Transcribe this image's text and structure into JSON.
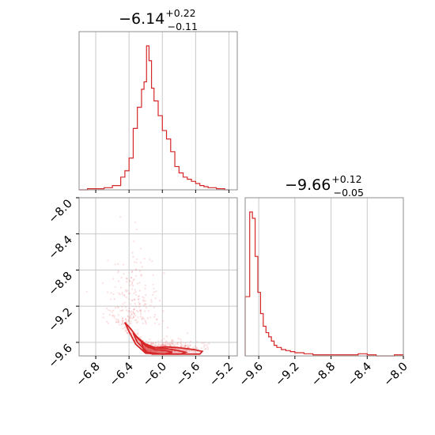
{
  "chart_data": [
    {
      "type": "histogram",
      "panel": "top-left",
      "title": {
        "value": "−6.14",
        "upper": "+0.22",
        "lower": "−0.11"
      },
      "xlim": [
        -7.0,
        -5.1
      ],
      "grid": true,
      "bin_edges": [
        -7.0,
        -6.9,
        -6.8,
        -6.7,
        -6.6,
        -6.5,
        -6.45,
        -6.4,
        -6.35,
        -6.3,
        -6.25,
        -6.22,
        -6.19,
        -6.16,
        -6.13,
        -6.1,
        -6.05,
        -6.0,
        -5.95,
        -5.9,
        -5.85,
        -5.8,
        -5.75,
        -5.7,
        -5.65,
        -5.6,
        -5.55,
        -5.5,
        -5.45,
        -5.4,
        -5.35,
        -5.3,
        -5.25,
        -5.2
      ],
      "counts": [
        0,
        1,
        1,
        2,
        4,
        12,
        18,
        30,
        58,
        78,
        95,
        102,
        136,
        122,
        96,
        84,
        70,
        56,
        48,
        36,
        22,
        16,
        12,
        10,
        8,
        6,
        4,
        3,
        2,
        2,
        1,
        1,
        0
      ]
    },
    {
      "type": "scatter",
      "panel": "bottom-left",
      "xlim": [
        -7.0,
        -5.1
      ],
      "ylim": [
        -9.75,
        -8.0
      ],
      "grid": true,
      "xticks": [
        "−6.8",
        "−6.4",
        "−6.0",
        "−5.6",
        "−5.2"
      ],
      "yticks": [
        "−8.0",
        "−8.4",
        "−8.8",
        "−9.2",
        "−9.6"
      ],
      "contours": [
        {
          "level": "outer",
          "x": [
            -6.45,
            -6.38,
            -6.3,
            -6.22,
            -6.1,
            -5.95,
            -5.8,
            -5.62,
            -5.52,
            -5.55,
            -5.75,
            -6.0,
            -6.2,
            -6.32,
            -6.4,
            -6.45
          ],
          "y": [
            -9.38,
            -9.45,
            -9.55,
            -9.62,
            -9.66,
            -9.65,
            -9.66,
            -9.68,
            -9.7,
            -9.73,
            -9.73,
            -9.73,
            -9.72,
            -9.62,
            -9.48,
            -9.38
          ]
        },
        {
          "level": "middle",
          "x": [
            -6.35,
            -6.28,
            -6.2,
            -6.08,
            -5.95,
            -5.82,
            -5.72,
            -5.78,
            -6.0,
            -6.18,
            -6.3,
            -6.35
          ],
          "y": [
            -9.5,
            -9.56,
            -9.62,
            -9.66,
            -9.67,
            -9.69,
            -9.71,
            -9.73,
            -9.73,
            -9.71,
            -9.6,
            -9.5
          ]
        },
        {
          "level": "inner",
          "x": [
            -6.25,
            -6.18,
            -6.08,
            -5.96,
            -5.88,
            -5.98,
            -6.12,
            -6.22,
            -6.25
          ],
          "y": [
            -9.6,
            -9.65,
            -9.68,
            -9.69,
            -9.71,
            -9.73,
            -9.73,
            -9.7,
            -9.6
          ]
        }
      ]
    },
    {
      "type": "histogram",
      "panel": "bottom-right",
      "title": {
        "value": "−9.66",
        "upper": "+0.12",
        "lower": "−0.05"
      },
      "xlim": [
        -9.75,
        -8.0
      ],
      "grid": true,
      "xticks": [
        "−9.6",
        "−9.2",
        "−8.8",
        "−8.4",
        "−8.0"
      ],
      "bin_edges": [
        -9.75,
        -9.7,
        -9.67,
        -9.64,
        -9.61,
        -9.58,
        -9.55,
        -9.52,
        -9.49,
        -9.46,
        -9.43,
        -9.4,
        -9.35,
        -9.3,
        -9.25,
        -9.2,
        -9.1,
        -9.0,
        -8.9,
        -8.8,
        -8.7,
        -8.6,
        -8.5,
        -8.4,
        -8.3,
        -8.2,
        -8.1,
        -8.0
      ],
      "counts": [
        56,
        136,
        130,
        94,
        60,
        40,
        28,
        22,
        18,
        14,
        10,
        8,
        6,
        5,
        4,
        3,
        2,
        1,
        1,
        1,
        1,
        1,
        2,
        1,
        0,
        0,
        1
      ]
    }
  ]
}
